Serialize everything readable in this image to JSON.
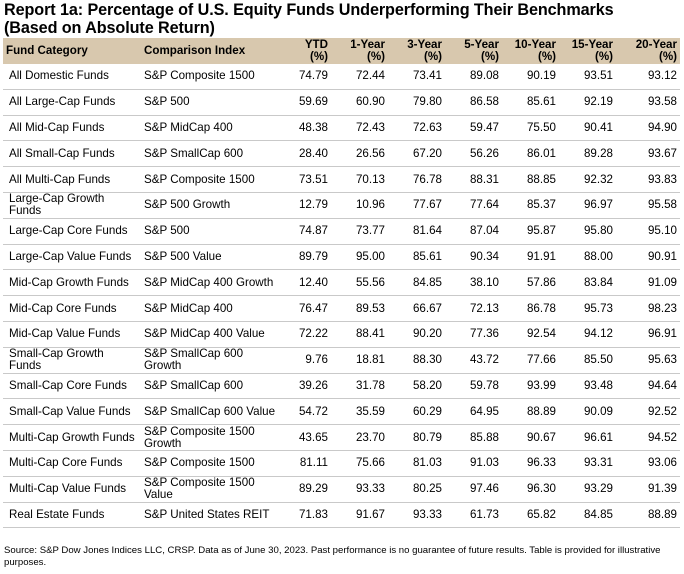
{
  "title_line1": "Report 1a: Percentage of U.S. Equity Funds Underperforming Their Benchmarks",
  "title_line2": "(Based on Absolute Return)",
  "headers": {
    "category": "Fund Category",
    "index": "Comparison Index",
    "periods": [
      {
        "label": "YTD",
        "unit": "(%)"
      },
      {
        "label": "1-Year",
        "unit": "(%)"
      },
      {
        "label": "3-Year",
        "unit": "(%)"
      },
      {
        "label": "5-Year",
        "unit": "(%)"
      },
      {
        "label": "10-Year",
        "unit": "(%)"
      },
      {
        "label": "15-Year",
        "unit": "(%)"
      },
      {
        "label": "20-Year",
        "unit": "(%)"
      }
    ]
  },
  "rows": [
    {
      "category": "All Domestic Funds",
      "index": "S&P Composite 1500",
      "values": [
        "74.79",
        "72.44",
        "73.41",
        "89.08",
        "90.19",
        "93.51",
        "93.12"
      ]
    },
    {
      "category": "All Large-Cap Funds",
      "index": "S&P 500",
      "values": [
        "59.69",
        "60.90",
        "79.80",
        "86.58",
        "85.61",
        "92.19",
        "93.58"
      ]
    },
    {
      "category": "All Mid-Cap Funds",
      "index": "S&P MidCap 400",
      "values": [
        "48.38",
        "72.43",
        "72.63",
        "59.47",
        "75.50",
        "90.41",
        "94.90"
      ]
    },
    {
      "category": "All Small-Cap Funds",
      "index": "S&P SmallCap 600",
      "values": [
        "28.40",
        "26.56",
        "67.20",
        "56.26",
        "86.01",
        "89.28",
        "93.67"
      ]
    },
    {
      "category": "All Multi-Cap Funds",
      "index": "S&P Composite 1500",
      "values": [
        "73.51",
        "70.13",
        "76.78",
        "88.31",
        "88.85",
        "92.32",
        "93.83"
      ]
    },
    {
      "category": "Large-Cap Growth Funds",
      "index": "S&P 500 Growth",
      "values": [
        "12.79",
        "10.96",
        "77.67",
        "77.64",
        "85.37",
        "96.97",
        "95.58"
      ]
    },
    {
      "category": "Large-Cap Core Funds",
      "index": "S&P 500",
      "values": [
        "74.87",
        "73.77",
        "81.64",
        "87.04",
        "95.87",
        "95.80",
        "95.10"
      ]
    },
    {
      "category": "Large-Cap Value Funds",
      "index": "S&P 500 Value",
      "values": [
        "89.79",
        "95.00",
        "85.61",
        "90.34",
        "91.91",
        "88.00",
        "90.91"
      ]
    },
    {
      "category": "Mid-Cap Growth Funds",
      "index": "S&P MidCap 400 Growth",
      "values": [
        "12.40",
        "55.56",
        "84.85",
        "38.10",
        "57.86",
        "83.84",
        "91.09"
      ]
    },
    {
      "category": "Mid-Cap Core Funds",
      "index": "S&P MidCap 400",
      "values": [
        "76.47",
        "89.53",
        "66.67",
        "72.13",
        "86.78",
        "95.73",
        "98.23"
      ]
    },
    {
      "category": "Mid-Cap Value Funds",
      "index": "S&P MidCap 400 Value",
      "values": [
        "72.22",
        "88.41",
        "90.20",
        "77.36",
        "92.54",
        "94.12",
        "96.91"
      ]
    },
    {
      "category": "Small-Cap Growth Funds",
      "index": "S&P SmallCap 600 Growth",
      "values": [
        "9.76",
        "18.81",
        "88.30",
        "43.72",
        "77.66",
        "85.50",
        "95.63"
      ]
    },
    {
      "category": "Small-Cap Core Funds",
      "index": "S&P SmallCap 600",
      "values": [
        "39.26",
        "31.78",
        "58.20",
        "59.78",
        "93.99",
        "93.48",
        "94.64"
      ]
    },
    {
      "category": "Small-Cap Value Funds",
      "index": "S&P SmallCap 600 Value",
      "values": [
        "54.72",
        "35.59",
        "60.29",
        "64.95",
        "88.89",
        "90.09",
        "92.52"
      ]
    },
    {
      "category": "Multi-Cap Growth Funds",
      "index": "S&P Composite 1500 Growth",
      "values": [
        "43.65",
        "23.70",
        "80.79",
        "85.88",
        "90.67",
        "96.61",
        "94.52"
      ]
    },
    {
      "category": "Multi-Cap Core Funds",
      "index": "S&P Composite 1500",
      "values": [
        "81.11",
        "75.66",
        "81.03",
        "91.03",
        "96.33",
        "93.31",
        "93.06"
      ]
    },
    {
      "category": "Multi-Cap Value Funds",
      "index": "S&P Composite 1500 Value",
      "values": [
        "89.29",
        "93.33",
        "80.25",
        "97.46",
        "96.30",
        "93.29",
        "91.39"
      ]
    },
    {
      "category": "Real Estate Funds",
      "index": "S&P United States REIT",
      "values": [
        "71.83",
        "91.67",
        "93.33",
        "61.73",
        "65.82",
        "84.85",
        "88.89"
      ]
    }
  ],
  "footnote": "Source: S&P Dow Jones Indices LLC, CRSP.  Data as of June 30, 2023.  Past performance is no guarantee of future results.  Table is provided for illustrative purposes.",
  "colors": {
    "header_background": "#d8c8ae",
    "row_divider": "#c9c9c9"
  }
}
